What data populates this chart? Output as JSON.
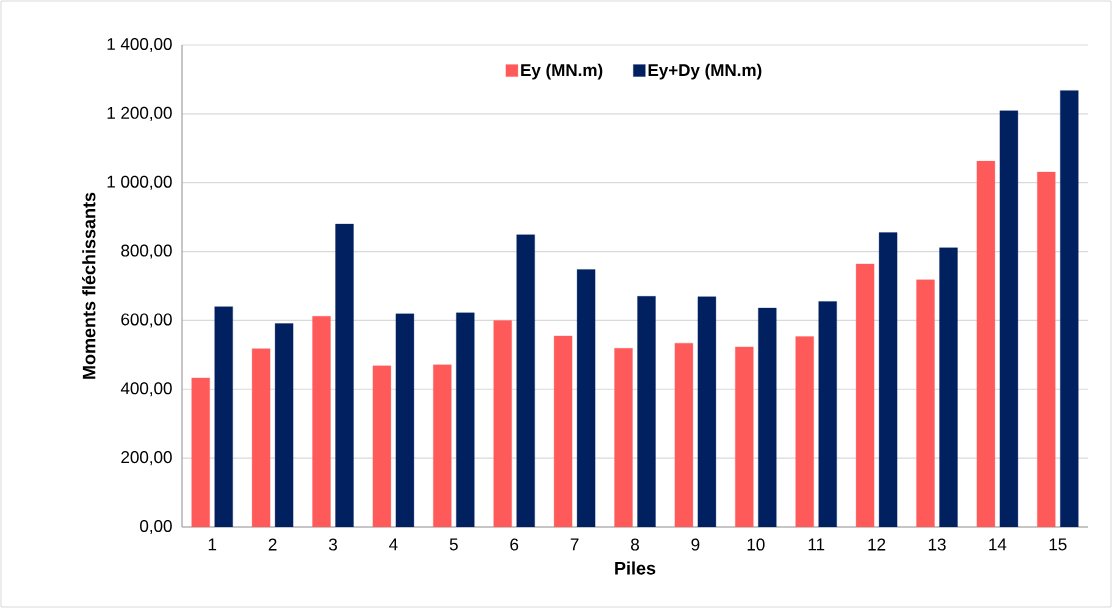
{
  "chart_data": {
    "type": "bar",
    "xlabel": "Piles",
    "ylabel": "Moments fléchissants",
    "categories": [
      "1",
      "2",
      "3",
      "4",
      "5",
      "6",
      "7",
      "8",
      "9",
      "10",
      "11",
      "12",
      "13",
      "14",
      "15"
    ],
    "series": [
      {
        "name": "Ey (MN.m)",
        "color": "#ff5a5a",
        "values": [
          433,
          518,
          612,
          468,
          471,
          600,
          555,
          519,
          534,
          523,
          553,
          764,
          718,
          1063,
          1031
        ]
      },
      {
        "name": "Ey+Dy (MN.m)",
        "color": "#002060",
        "values": [
          640,
          591,
          880,
          619,
          622,
          849,
          748,
          670,
          669,
          636,
          655,
          855,
          811,
          1209,
          1268
        ]
      }
    ],
    "ylim": [
      0,
      1400
    ],
    "yticks": [
      {
        "value": 0,
        "label": "0,00"
      },
      {
        "value": 200,
        "label": "200,00"
      },
      {
        "value": 400,
        "label": "400,00"
      },
      {
        "value": 600,
        "label": "600,00"
      },
      {
        "value": 800,
        "label": "800,00"
      },
      {
        "value": 1000,
        "label": "1 000,00"
      },
      {
        "value": 1200,
        "label": "1 200,00"
      },
      {
        "value": 1400,
        "label": "1 400,00"
      }
    ],
    "grid": "y",
    "legend": "top"
  }
}
